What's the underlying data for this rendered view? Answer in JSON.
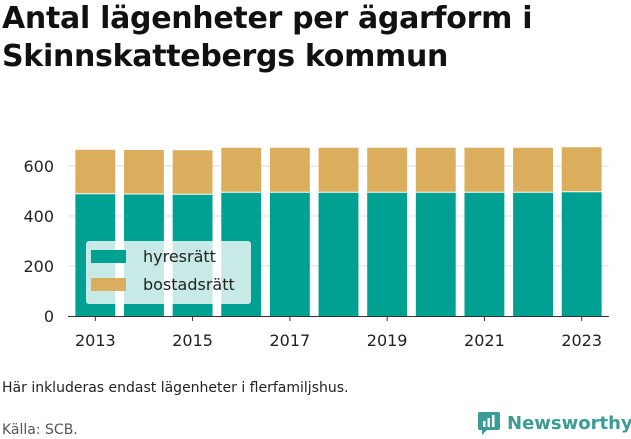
{
  "title_line1": "Antal lägenheter per ägarform i",
  "title_line2": "Skinnskattebergs kommun",
  "note": "Här inkluderas endast lägenheter i flerfamiljshus.",
  "source": "Källa: SCB.",
  "brand": "Newsworthy",
  "colors": {
    "hyresratt": "#00a093",
    "bostadsratt": "#dbae5d",
    "grid": "#dddddd",
    "brand": "#3a9c96"
  },
  "chart_data": {
    "type": "bar",
    "stacked": true,
    "categories": [
      "2013",
      "2014",
      "2015",
      "2016",
      "2017",
      "2018",
      "2019",
      "2020",
      "2021",
      "2022",
      "2023"
    ],
    "series": [
      {
        "name": "hyresrätt",
        "values": [
          487,
          486,
          485,
          493,
          493,
          493,
          493,
          493,
          493,
          493,
          495
        ]
      },
      {
        "name": "bostadsrätt",
        "values": [
          178,
          178,
          178,
          180,
          180,
          180,
          180,
          180,
          180,
          180,
          180
        ]
      }
    ],
    "xtick_labels": [
      "2013",
      "2015",
      "2017",
      "2019",
      "2021",
      "2023"
    ],
    "yticks": [
      0,
      200,
      400,
      600
    ],
    "ylim": [
      0,
      700
    ],
    "grid": true,
    "legend_position": "lower-left"
  }
}
